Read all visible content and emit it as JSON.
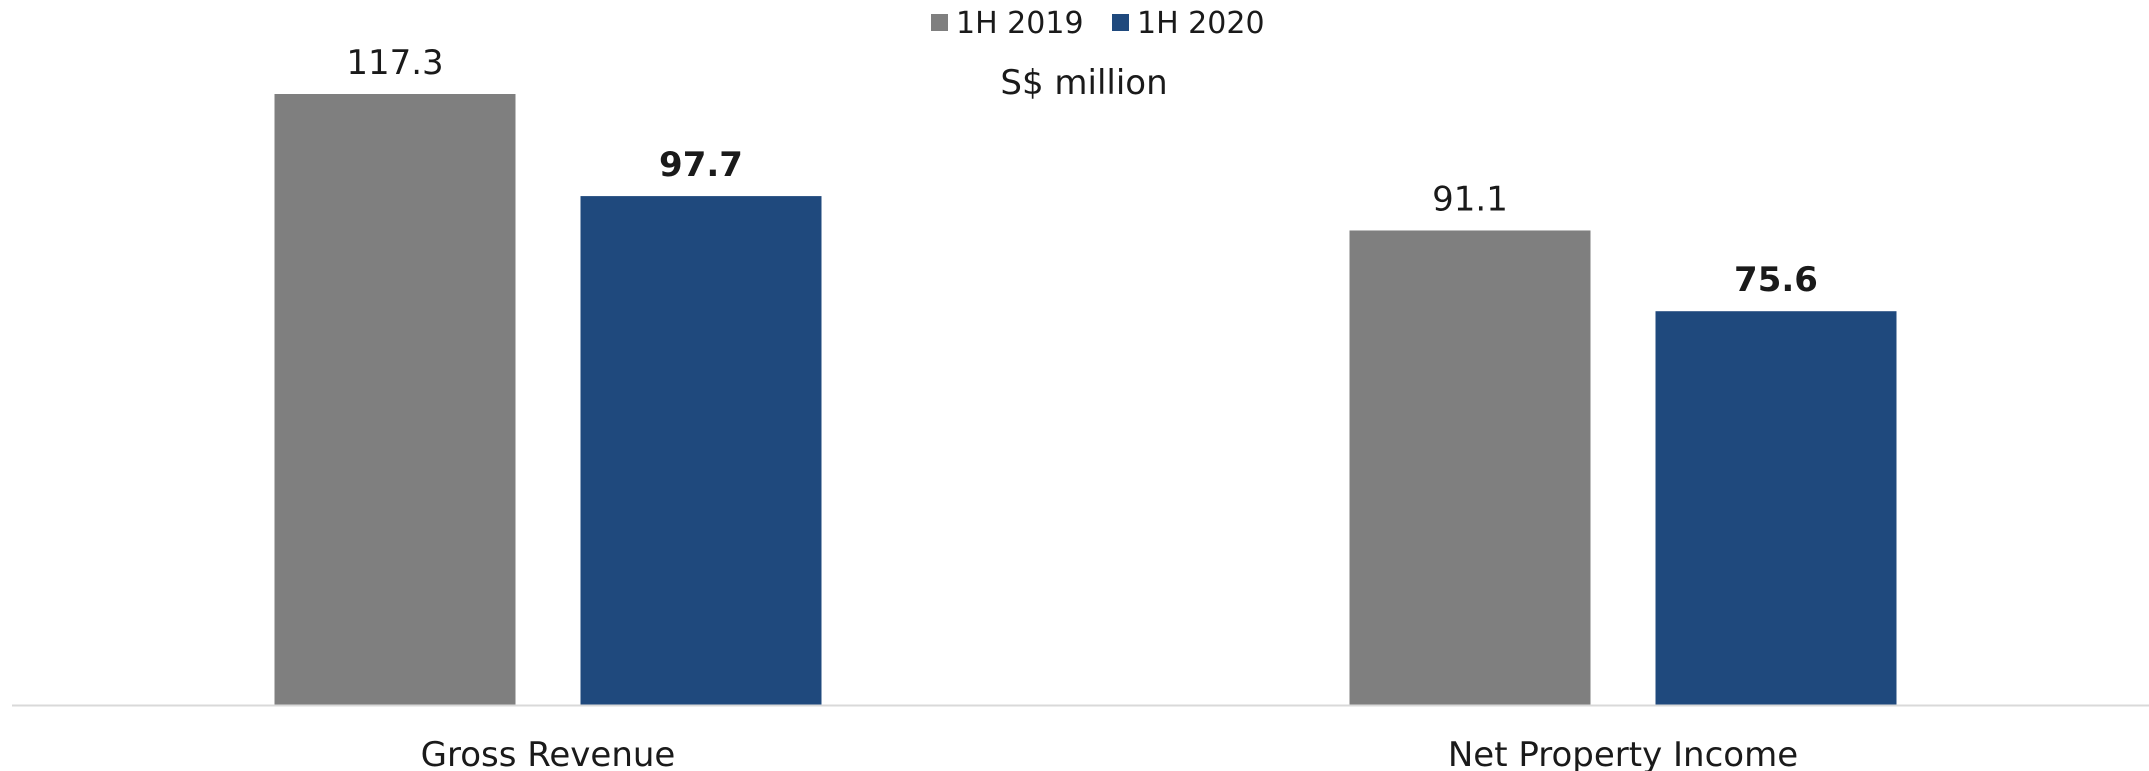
{
  "chart_data": {
    "type": "bar",
    "unit_label": "S$ million",
    "categories": [
      "Gross Revenue",
      "Net Property Income"
    ],
    "series": [
      {
        "name": "1H 2019",
        "color": "#7f7f7f",
        "values": [
          117.3,
          91.1
        ],
        "labels": [
          "117.3",
          "91.1"
        ],
        "bold_labels": false
      },
      {
        "name": "1H 2020",
        "color": "#1f497d",
        "values": [
          97.7,
          75.6
        ],
        "labels": [
          "97.7",
          "75.6"
        ],
        "bold_labels": true
      }
    ],
    "ylim": [
      0,
      117.3
    ],
    "grid": false,
    "legend_position": "top-center",
    "axis_line_color": "#d9d9d9"
  }
}
